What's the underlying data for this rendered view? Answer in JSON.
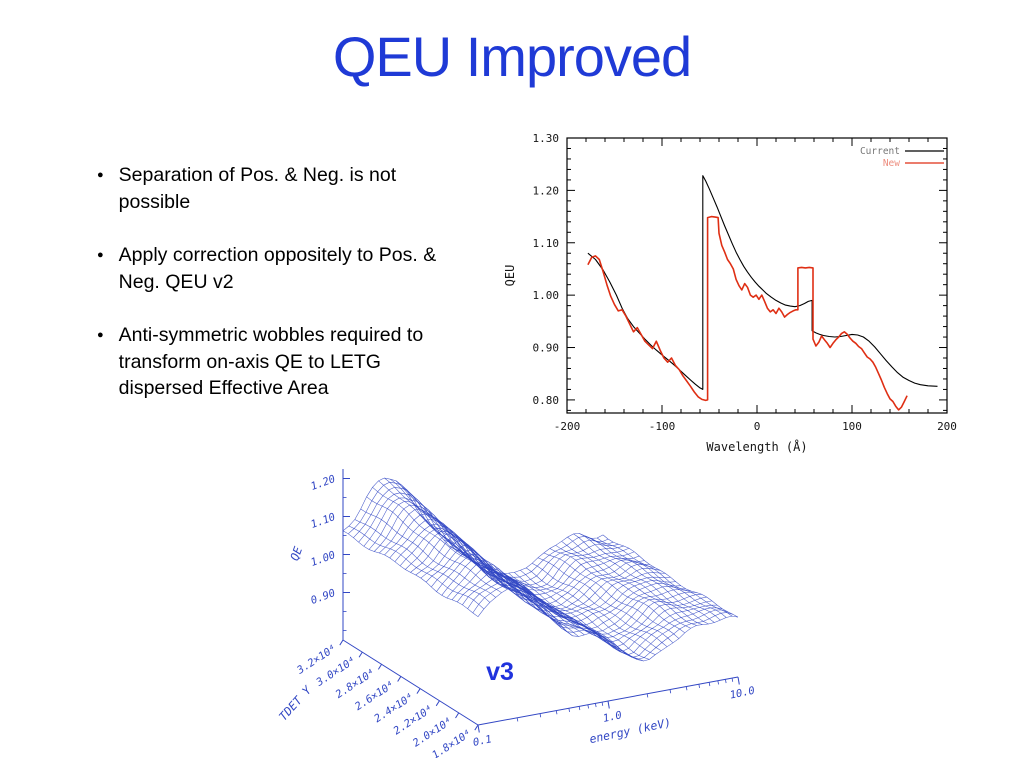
{
  "slide": {
    "title": "QEU Improved",
    "title_color": "#1f3ad6",
    "bullets": [
      "Separation of Pos. & Neg. is not possible",
      "Apply correction oppositely to Pos. & Neg.  QEU v2",
      "Anti-symmetric wobbles required to transform on-axis QE to LETG dispersed Effective Area"
    ]
  },
  "chart_data": [
    {
      "type": "line",
      "xlabel": "Wavelength (Å)",
      "ylabel": "QEU",
      "xlim": [
        -200,
        200
      ],
      "ylim": [
        0.775,
        1.3
      ],
      "xticks": [
        -200,
        -100,
        0,
        100,
        200
      ],
      "yticks": [
        0.8,
        0.9,
        1.0,
        1.1,
        1.2,
        1.3
      ],
      "grid": false,
      "legend_position": "top-right",
      "series": [
        {
          "name": "Current",
          "color": "#000000",
          "points": [
            [
              -178,
              1.08
            ],
            [
              -170,
              1.068
            ],
            [
              -162,
              1.048
            ],
            [
              -155,
              1.025
            ],
            [
              -148,
              1.0
            ],
            [
              -142,
              0.975
            ],
            [
              -136,
              0.955
            ],
            [
              -130,
              0.94
            ],
            [
              -124,
              0.928
            ],
            [
              -118,
              0.916
            ],
            [
              -112,
              0.905
            ],
            [
              -106,
              0.895
            ],
            [
              -100,
              0.886
            ],
            [
              -94,
              0.877
            ],
            [
              -88,
              0.868
            ],
            [
              -82,
              0.858
            ],
            [
              -76,
              0.848
            ],
            [
              -70,
              0.838
            ],
            [
              -65,
              0.83
            ],
            [
              -60,
              0.823
            ],
            [
              -57,
              0.82
            ],
            [
              -57,
              1.228
            ],
            [
              -54,
              1.218
            ],
            [
              -50,
              1.202
            ],
            [
              -46,
              1.185
            ],
            [
              -42,
              1.168
            ],
            [
              -38,
              1.15
            ],
            [
              -34,
              1.132
            ],
            [
              -30,
              1.115
            ],
            [
              -26,
              1.098
            ],
            [
              -22,
              1.082
            ],
            [
              -18,
              1.068
            ],
            [
              -14,
              1.055
            ],
            [
              -10,
              1.044
            ],
            [
              -6,
              1.034
            ],
            [
              -2,
              1.025
            ],
            [
              2,
              1.017
            ],
            [
              6,
              1.01
            ],
            [
              10,
              1.003
            ],
            [
              15,
              0.996
            ],
            [
              20,
              0.99
            ],
            [
              25,
              0.985
            ],
            [
              30,
              0.981
            ],
            [
              35,
              0.979
            ],
            [
              40,
              0.978
            ],
            [
              45,
              0.98
            ],
            [
              50,
              0.984
            ],
            [
              54,
              0.988
            ],
            [
              58,
              0.99
            ],
            [
              58,
              0.932
            ],
            [
              62,
              0.928
            ],
            [
              66,
              0.925
            ],
            [
              70,
              0.923
            ],
            [
              76,
              0.921
            ],
            [
              82,
              0.92
            ],
            [
              88,
              0.921
            ],
            [
              94,
              0.923
            ],
            [
              100,
              0.925
            ],
            [
              106,
              0.924
            ],
            [
              112,
              0.92
            ],
            [
              118,
              0.912
            ],
            [
              124,
              0.901
            ],
            [
              130,
              0.888
            ],
            [
              136,
              0.875
            ],
            [
              142,
              0.863
            ],
            [
              148,
              0.852
            ],
            [
              154,
              0.843
            ],
            [
              160,
              0.837
            ],
            [
              166,
              0.832
            ],
            [
              172,
              0.829
            ],
            [
              180,
              0.827
            ],
            [
              190,
              0.826
            ]
          ]
        },
        {
          "name": "New",
          "color": "#df2f14",
          "points": [
            [
              -178,
              1.058
            ],
            [
              -174,
              1.072
            ],
            [
              -170,
              1.075
            ],
            [
              -166,
              1.068
            ],
            [
              -162,
              1.045
            ],
            [
              -158,
              1.02
            ],
            [
              -154,
              0.998
            ],
            [
              -150,
              0.982
            ],
            [
              -146,
              0.97
            ],
            [
              -142,
              0.972
            ],
            [
              -138,
              0.96
            ],
            [
              -134,
              0.945
            ],
            [
              -130,
              0.93
            ],
            [
              -126,
              0.938
            ],
            [
              -122,
              0.925
            ],
            [
              -118,
              0.912
            ],
            [
              -114,
              0.905
            ],
            [
              -110,
              0.898
            ],
            [
              -106,
              0.912
            ],
            [
              -102,
              0.895
            ],
            [
              -98,
              0.88
            ],
            [
              -94,
              0.872
            ],
            [
              -90,
              0.88
            ],
            [
              -86,
              0.866
            ],
            [
              -82,
              0.858
            ],
            [
              -78,
              0.846
            ],
            [
              -74,
              0.836
            ],
            [
              -70,
              0.826
            ],
            [
              -66,
              0.815
            ],
            [
              -62,
              0.806
            ],
            [
              -58,
              0.801
            ],
            [
              -54,
              0.799
            ],
            [
              -52,
              0.8
            ],
            [
              -52,
              1.148
            ],
            [
              -48,
              1.15
            ],
            [
              -44,
              1.149
            ],
            [
              -41,
              1.148
            ],
            [
              -40,
              1.118
            ],
            [
              -37,
              1.095
            ],
            [
              -34,
              1.082
            ],
            [
              -31,
              1.068
            ],
            [
              -28,
              1.06
            ],
            [
              -25,
              1.05
            ],
            [
              -22,
              1.03
            ],
            [
              -19,
              1.018
            ],
            [
              -16,
              1.01
            ],
            [
              -13,
              1.022
            ],
            [
              -10,
              1.015
            ],
            [
              -7,
              1.0
            ],
            [
              -4,
              0.996
            ],
            [
              -1,
              1.0
            ],
            [
              2,
              0.992
            ],
            [
              5,
              1.0
            ],
            [
              8,
              0.988
            ],
            [
              11,
              0.975
            ],
            [
              14,
              0.968
            ],
            [
              17,
              0.972
            ],
            [
              20,
              0.965
            ],
            [
              23,
              0.975
            ],
            [
              26,
              0.968
            ],
            [
              29,
              0.958
            ],
            [
              32,
              0.963
            ],
            [
              35,
              0.967
            ],
            [
              38,
              0.97
            ],
            [
              41,
              0.972
            ],
            [
              43,
              0.972
            ],
            [
              43,
              1.052
            ],
            [
              47,
              1.053
            ],
            [
              51,
              1.052
            ],
            [
              55,
              1.053
            ],
            [
              59,
              1.052
            ],
            [
              59,
              0.916
            ],
            [
              62,
              0.903
            ],
            [
              65,
              0.91
            ],
            [
              68,
              0.922
            ],
            [
              71,
              0.915
            ],
            [
              74,
              0.908
            ],
            [
              77,
              0.9
            ],
            [
              80,
              0.908
            ],
            [
              83,
              0.915
            ],
            [
              86,
              0.92
            ],
            [
              89,
              0.927
            ],
            [
              92,
              0.93
            ],
            [
              95,
              0.925
            ],
            [
              98,
              0.918
            ],
            [
              101,
              0.912
            ],
            [
              104,
              0.908
            ],
            [
              107,
              0.902
            ],
            [
              110,
              0.898
            ],
            [
              113,
              0.89
            ],
            [
              116,
              0.882
            ],
            [
              119,
              0.878
            ],
            [
              122,
              0.872
            ],
            [
              125,
              0.862
            ],
            [
              128,
              0.85
            ],
            [
              131,
              0.838
            ],
            [
              134,
              0.824
            ],
            [
              137,
              0.812
            ],
            [
              140,
              0.802
            ],
            [
              143,
              0.797
            ],
            [
              146,
              0.788
            ],
            [
              149,
              0.781
            ],
            [
              152,
              0.786
            ],
            [
              155,
              0.797
            ],
            [
              158,
              0.808
            ]
          ]
        }
      ]
    },
    {
      "type": "surface",
      "annotation": "v3",
      "annotation_color": "#2033dd",
      "color": "#3247c4",
      "xlabel": "energy (keV)",
      "xscale": "log",
      "xticks": [
        "0.1",
        "1.0",
        "10.0"
      ],
      "ylabel": "TDET Y",
      "yticks": [
        "1.8×10⁴",
        "2.0×10⁴",
        "2.2×10⁴",
        "2.4×10⁴",
        "2.6×10⁴",
        "2.8×10⁴",
        "3.0×10⁴",
        "3.2×10⁴"
      ],
      "zlabel": "QE",
      "zticks": [
        "0.90",
        "1.00",
        "1.10",
        "1.20"
      ],
      "zlim": [
        0.775,
        1.225
      ],
      "energy_profile": [
        1.06,
        1.09,
        1.12,
        1.13,
        1.1,
        1.05,
        1.01,
        0.98,
        0.96,
        0.95,
        0.93,
        0.9,
        0.875,
        0.86,
        0.875,
        0.9,
        0.92,
        0.93,
        0.935,
        0.93,
        0.93
      ],
      "ridge_profile": [
        0.0,
        0.01,
        0.03,
        0.05,
        0.07,
        0.08,
        0.06,
        0.035,
        0.015,
        0.005,
        0,
        0,
        0,
        0,
        0,
        0,
        0,
        0,
        0,
        0,
        0
      ],
      "tdet_modulation": [
        0.0,
        0.04,
        0.1,
        0.2,
        0.33,
        0.5,
        0.68,
        0.85,
        1.0
      ]
    }
  ]
}
